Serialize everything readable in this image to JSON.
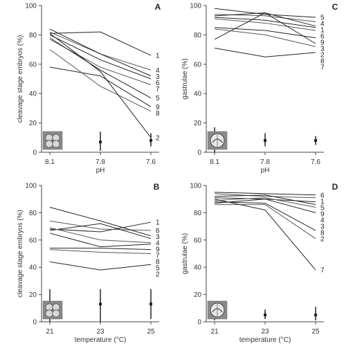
{
  "chart_data": [
    {
      "type": "line",
      "panel_letter": "A",
      "xlabel": "pH",
      "ylabel": "cleavage stage embryos (%)",
      "categories": [
        "8.1",
        "7.8",
        "7.6"
      ],
      "ylim": [
        0,
        100
      ],
      "yticks": [
        "0",
        "20",
        "40",
        "60",
        "80",
        "100"
      ],
      "series": [
        {
          "name": "1",
          "values": [
            81,
            82,
            66
          ]
        },
        {
          "name": "4",
          "values": [
            82,
            67,
            56
          ]
        },
        {
          "name": "3",
          "values": [
            84,
            67,
            52
          ]
        },
        {
          "name": "6",
          "values": [
            80,
            63,
            50
          ]
        },
        {
          "name": "7",
          "values": [
            77,
            58,
            46
          ]
        },
        {
          "name": "5",
          "values": [
            78,
            56,
            37
          ]
        },
        {
          "name": "9",
          "values": [
            58,
            52,
            31
          ]
        },
        {
          "name": "8",
          "values": [
            70,
            45,
            28
          ]
        },
        {
          "name": "2",
          "values": [
            81,
            55,
            10
          ]
        }
      ],
      "error_points": [
        {
          "x": "8.1",
          "mean": 7,
          "low": 2,
          "high": 12
        },
        {
          "x": "7.8",
          "mean": 7,
          "low": 1,
          "high": 14
        },
        {
          "x": "7.6",
          "mean": 8,
          "low": 4,
          "high": 13
        }
      ],
      "icon": "embryo-cleavage-icon"
    },
    {
      "type": "line",
      "panel_letter": "C",
      "xlabel": "pH",
      "ylabel": "gastrulae (%)",
      "categories": [
        "8.1",
        "7.8",
        "7.6"
      ],
      "ylim": [
        0,
        100
      ],
      "yticks": [
        "0",
        "20",
        "40",
        "60",
        "80",
        "100"
      ],
      "series": [
        {
          "name": "5",
          "values": [
            98,
            94,
            92
          ]
        },
        {
          "name": "4",
          "values": [
            94,
            93,
            89
          ]
        },
        {
          "name": "1",
          "values": [
            93,
            95,
            86
          ]
        },
        {
          "name": "6",
          "values": [
            92,
            90,
            85
          ]
        },
        {
          "name": "9",
          "values": [
            91,
            88,
            83
          ]
        },
        {
          "name": "3",
          "values": [
            85,
            83,
            78
          ]
        },
        {
          "name": "2",
          "values": [
            77,
            95,
            74
          ]
        },
        {
          "name": "8",
          "values": [
            84,
            80,
            72
          ]
        },
        {
          "name": "7",
          "values": [
            71,
            65,
            68
          ]
        }
      ],
      "error_points": [
        {
          "x": "8.1",
          "mean": 8,
          "low": 0,
          "high": 17
        },
        {
          "x": "7.8",
          "mean": 8,
          "low": 4,
          "high": 13
        },
        {
          "x": "7.6",
          "mean": 8,
          "low": 5,
          "high": 11
        }
      ],
      "icon": "embryo-gastrula-icon"
    },
    {
      "type": "line",
      "panel_letter": "B",
      "xlabel": "temperature (°C)",
      "ylabel": "cleavage stage embryos (%)",
      "categories": [
        "21",
        "23",
        "25"
      ],
      "ylim": [
        0,
        100
      ],
      "yticks": [
        "0",
        "20",
        "40",
        "60",
        "80",
        "100"
      ],
      "series": [
        {
          "name": "1",
          "values": [
            68,
            66,
            73
          ]
        },
        {
          "name": "6",
          "values": [
            74,
            68,
            67
          ]
        },
        {
          "name": "3",
          "values": [
            84,
            74,
            63
          ]
        },
        {
          "name": "4",
          "values": [
            67,
            72,
            61
          ]
        },
        {
          "name": "9",
          "values": [
            69,
            60,
            58
          ]
        },
        {
          "name": "7",
          "values": [
            65,
            55,
            57
          ]
        },
        {
          "name": "8",
          "values": [
            54,
            54,
            53
          ]
        },
        {
          "name": "5",
          "values": [
            53,
            51,
            50
          ]
        },
        {
          "name": "2",
          "values": [
            44,
            38,
            42
          ]
        }
      ],
      "error_points": [
        {
          "x": "21",
          "mean": 13,
          "low": 0,
          "high": 24
        },
        {
          "x": "23",
          "mean": 13,
          "low": 0,
          "high": 24
        },
        {
          "x": "25",
          "mean": 13,
          "low": 2,
          "high": 24
        }
      ],
      "icon": "embryo-cleavage-icon"
    },
    {
      "type": "line",
      "panel_letter": "D",
      "xlabel": "temperature (°C)",
      "ylabel": "gastrulae (%)",
      "categories": [
        "21",
        "23",
        "25"
      ],
      "ylim": [
        0,
        100
      ],
      "yticks": [
        "0",
        "20",
        "40",
        "60",
        "80",
        "100"
      ],
      "series": [
        {
          "name": "6",
          "values": [
            95,
            94,
            93
          ]
        },
        {
          "name": "1",
          "values": [
            94,
            92,
            91
          ]
        },
        {
          "name": "5",
          "values": [
            91,
            90,
            88
          ]
        },
        {
          "name": "9",
          "values": [
            92,
            93,
            86
          ]
        },
        {
          "name": "4",
          "values": [
            89,
            91,
            84
          ]
        },
        {
          "name": "3",
          "values": [
            87,
            90,
            80
          ]
        },
        {
          "name": "8",
          "values": [
            88,
            87,
            67
          ]
        },
        {
          "name": "2",
          "values": [
            86,
            86,
            61
          ]
        },
        {
          "name": "7",
          "values": [
            90,
            82,
            38
          ]
        }
      ],
      "error_points": [
        {
          "x": "21",
          "mean": 5,
          "low": 1,
          "high": 10
        },
        {
          "x": "23",
          "mean": 5,
          "low": 2,
          "high": 9
        },
        {
          "x": "25",
          "mean": 5,
          "low": 1,
          "high": 11
        }
      ],
      "icon": "embryo-gastrula-icon"
    }
  ]
}
